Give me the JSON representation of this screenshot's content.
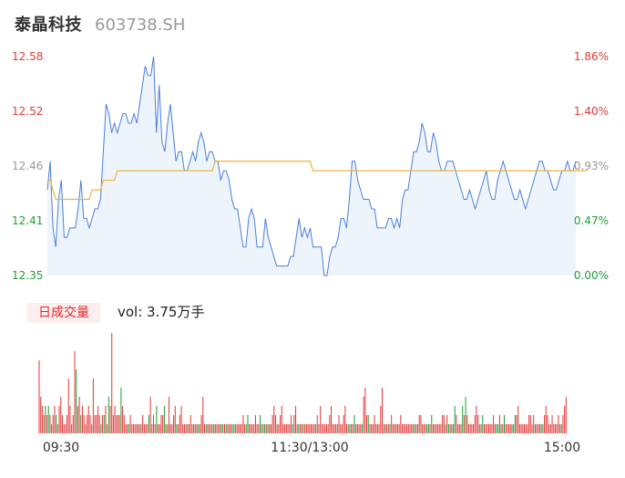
{
  "header": {
    "name": "泰晶科技",
    "code": "603738.SH"
  },
  "volume_panel": {
    "badge": "日成交量",
    "text": "vol: 3.75万手"
  },
  "colors": {
    "price_line": "#4a7fe0",
    "avg_line": "#f0b43c",
    "up": "#e43a3a",
    "down": "#1fa03a",
    "area": "#eef4fc",
    "grid_text": "#555555"
  },
  "chart_data": [
    {
      "type": "line",
      "y_ticks_left": [
        "12.58",
        "12.52",
        "12.46",
        "12.41",
        "12.35"
      ],
      "y_ticks_right": [
        "1.86%",
        "1.40%",
        "0.93%",
        "0.47%",
        "0.00%"
      ],
      "left_tick_colors": [
        "#e43a3a",
        "#e43a3a",
        "#999999",
        "#1fa03a",
        "#1fa03a"
      ],
      "right_tick_colors": [
        "#e43a3a",
        "#e43a3a",
        "#999999",
        "#1fa03a",
        "#1fa03a"
      ],
      "ylim": [
        12.35,
        12.58
      ],
      "x_ticks": [
        "09:30",
        "11:30/13:00",
        "15:00"
      ],
      "series": [
        {
          "values": [
            12.44,
            12.47,
            12.4,
            12.38,
            12.43,
            12.45,
            12.39,
            12.39,
            12.4,
            12.4,
            12.4,
            12.42,
            12.45,
            12.41,
            12.41,
            12.4,
            12.41,
            12.42,
            12.42,
            12.43,
            12.48,
            12.53,
            12.52,
            12.5,
            12.51,
            12.5,
            12.51,
            12.52,
            12.52,
            12.51,
            12.51,
            12.52,
            12.51,
            12.53,
            12.55,
            12.57,
            12.56,
            12.56,
            12.58,
            12.5,
            12.55,
            12.49,
            12.48,
            12.51,
            12.53,
            12.5,
            12.47,
            12.48,
            12.48,
            12.46,
            12.46,
            12.47,
            12.48,
            12.47,
            12.49,
            12.5,
            12.49,
            12.47,
            12.48,
            12.48,
            12.47,
            12.47,
            12.45,
            12.46,
            12.46,
            12.45,
            12.43,
            12.42,
            12.42,
            12.4,
            12.38,
            12.38,
            12.41,
            12.42,
            12.41,
            12.38,
            12.38,
            12.38,
            12.41,
            12.39,
            12.38,
            12.37,
            12.36,
            12.36,
            12.36,
            12.36,
            12.36,
            12.37,
            12.37,
            12.39,
            12.41,
            12.39,
            12.4,
            12.39,
            12.4,
            12.38,
            12.38,
            12.38,
            12.38,
            12.35,
            12.35,
            12.37,
            12.38,
            12.38,
            12.39,
            12.41,
            12.41,
            12.4,
            12.43,
            12.47,
            12.47,
            12.45,
            12.44,
            12.43,
            12.43,
            12.43,
            12.42,
            12.42,
            12.4,
            12.4,
            12.4,
            12.4,
            12.41,
            12.41,
            12.4,
            12.41,
            12.4,
            12.43,
            12.44,
            12.44,
            12.46,
            12.48,
            12.48,
            12.49,
            12.51,
            12.5,
            12.48,
            12.48,
            12.5,
            12.49,
            12.47,
            12.46,
            12.46,
            12.47,
            12.47,
            12.47,
            12.46,
            12.45,
            12.44,
            12.43,
            12.43,
            12.44,
            12.43,
            12.42,
            12.43,
            12.44,
            12.45,
            12.46,
            12.44,
            12.43,
            12.43,
            12.45,
            12.46,
            12.47,
            12.46,
            12.45,
            12.44,
            12.43,
            12.43,
            12.44,
            12.43,
            12.42,
            12.43,
            12.44,
            12.45,
            12.46,
            12.47,
            12.47,
            12.46,
            12.46,
            12.45,
            12.44,
            12.44,
            12.45,
            12.46,
            12.46,
            12.47,
            12.46,
            12.46,
            12.47
          ]
        },
        {
          "values": [
            12.45,
            12.45,
            12.44,
            12.43,
            12.43,
            12.43,
            12.43,
            12.43,
            12.43,
            12.43,
            12.43,
            12.43,
            12.43,
            12.43,
            12.43,
            12.43,
            12.44,
            12.44,
            12.44,
            12.44,
            12.45,
            12.45,
            12.45,
            12.45,
            12.45,
            12.46,
            12.46,
            12.46,
            12.46,
            12.46,
            12.46,
            12.46,
            12.46,
            12.46,
            12.46,
            12.46,
            12.46,
            12.46,
            12.46,
            12.46,
            12.46,
            12.46,
            12.46,
            12.46,
            12.46,
            12.46,
            12.46,
            12.46,
            12.46,
            12.46,
            12.46,
            12.46,
            12.46,
            12.46,
            12.46,
            12.46,
            12.46,
            12.46,
            12.46,
            12.46,
            12.47,
            12.47,
            12.47,
            12.47,
            12.47,
            12.47,
            12.47,
            12.47,
            12.47,
            12.47,
            12.47,
            12.47,
            12.47,
            12.47,
            12.47,
            12.47,
            12.47,
            12.47,
            12.47,
            12.47,
            12.47,
            12.47,
            12.47,
            12.47,
            12.47,
            12.47,
            12.47,
            12.47,
            12.47,
            12.47,
            12.47,
            12.47,
            12.47,
            12.47,
            12.47,
            12.46,
            12.46,
            12.46,
            12.46,
            12.46,
            12.46,
            12.46,
            12.46,
            12.46,
            12.46,
            12.46,
            12.46,
            12.46,
            12.46,
            12.46,
            12.46,
            12.46,
            12.46,
            12.46,
            12.46,
            12.46,
            12.46,
            12.46,
            12.46,
            12.46,
            12.46,
            12.46,
            12.46,
            12.46,
            12.46,
            12.46,
            12.46,
            12.46,
            12.46,
            12.46,
            12.46,
            12.46,
            12.46,
            12.46,
            12.46,
            12.46,
            12.46,
            12.46,
            12.46,
            12.46,
            12.46,
            12.46,
            12.46,
            12.46,
            12.46,
            12.46,
            12.46,
            12.46,
            12.46,
            12.46,
            12.46,
            12.46,
            12.46,
            12.46,
            12.46,
            12.46,
            12.46,
            12.46,
            12.46,
            12.46,
            12.46,
            12.46,
            12.46,
            12.46,
            12.46,
            12.46,
            12.46,
            12.46,
            12.46,
            12.46,
            12.46,
            12.46,
            12.46,
            12.46,
            12.46,
            12.46,
            12.46,
            12.46,
            12.46,
            12.46,
            12.46,
            12.46,
            12.46,
            12.46,
            12.46,
            12.46,
            12.46,
            12.46,
            12.46,
            12.46,
            12.46,
            12.46,
            12.46,
            12.46
          ]
        }
      ]
    },
    {
      "type": "bar",
      "values": [
        8,
        4,
        3,
        2,
        3,
        2,
        3,
        2,
        1,
        2,
        3,
        2,
        1,
        3,
        4,
        2,
        1,
        1,
        2,
        6,
        3,
        1,
        2,
        9,
        7,
        3,
        4,
        2,
        3,
        2,
        1,
        2,
        3,
        2,
        1,
        6,
        2,
        2,
        3,
        2,
        1,
        2,
        2,
        3,
        1,
        4,
        3,
        11,
        2,
        3,
        2,
        2,
        2,
        5,
        3,
        2,
        1,
        1,
        1,
        2,
        1,
        1,
        1,
        1,
        1,
        1,
        1,
        2,
        1,
        1,
        1,
        2,
        4,
        1,
        2,
        1,
        3,
        1,
        1,
        2,
        2,
        3,
        1,
        1,
        4,
        1,
        1,
        2,
        3,
        1,
        1,
        2,
        3,
        1,
        1,
        1,
        1,
        1,
        2,
        1,
        1,
        1,
        1,
        1,
        1,
        2,
        4,
        1,
        1,
        1,
        1,
        1,
        1,
        1,
        1,
        1,
        1,
        1,
        1,
        1,
        1,
        1,
        1,
        1,
        1,
        1,
        1,
        1,
        1,
        1,
        1,
        1,
        2,
        1,
        1,
        2,
        1,
        1,
        1,
        1,
        2,
        1,
        1,
        2,
        1,
        1,
        1,
        1,
        1,
        1,
        1,
        2,
        3,
        2,
        1,
        1,
        2,
        3,
        1,
        1,
        1,
        1,
        1,
        2,
        1,
        2,
        3,
        1,
        1,
        1,
        1,
        1,
        1,
        1,
        1,
        1,
        1,
        1,
        1,
        1,
        2,
        1,
        3,
        1,
        1,
        1,
        1,
        1,
        2,
        3,
        1,
        1,
        1,
        1,
        2,
        1,
        1,
        2,
        3,
        1,
        1,
        1,
        1,
        1,
        2,
        1,
        1,
        1,
        1,
        1,
        4,
        5,
        2,
        2,
        1,
        1,
        1,
        2,
        1,
        1,
        1,
        3,
        5,
        1,
        1,
        1,
        1,
        1,
        2,
        1,
        1,
        1,
        1,
        1,
        2,
        1,
        1,
        1,
        1,
        1,
        1,
        1,
        1,
        1,
        1,
        1,
        2,
        2,
        1,
        1,
        1,
        1,
        1,
        1,
        2,
        1,
        1,
        1,
        1,
        1,
        1,
        2,
        2,
        1,
        2,
        1,
        1,
        1,
        1,
        3,
        2,
        1,
        1,
        1,
        3,
        2,
        4,
        2,
        1,
        1,
        1,
        1,
        2,
        3,
        2,
        1,
        1,
        2,
        1,
        1,
        1,
        1,
        1,
        1,
        2,
        1,
        1,
        1,
        2,
        1,
        1,
        2,
        1,
        1,
        1,
        1,
        1,
        1,
        2,
        2,
        3,
        1,
        1,
        1,
        1,
        1,
        1,
        2,
        2,
        1,
        2,
        1,
        1,
        1,
        1,
        1,
        1,
        2,
        3,
        2,
        1,
        1,
        2,
        1,
        1,
        1,
        2,
        1,
        1,
        2,
        3,
        4
      ],
      "colors": "up-down"
    }
  ]
}
